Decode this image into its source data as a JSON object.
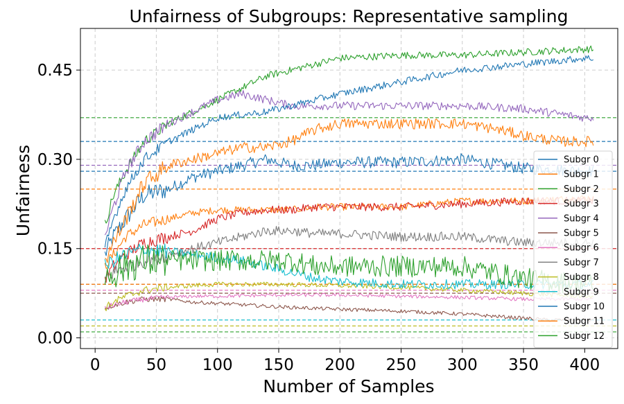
{
  "chart_data": {
    "type": "line",
    "title": "Unfairness of Subgroups: Representative sampling",
    "xlabel": "Number of Samples",
    "ylabel": "Unfairness",
    "xlim": [
      -12,
      427
    ],
    "ylim": [
      -0.018,
      0.52
    ],
    "xticks": [
      0,
      50,
      100,
      150,
      200,
      250,
      300,
      350,
      400
    ],
    "yticks": [
      0.0,
      0.15,
      0.3,
      0.45
    ],
    "ytick_labels": [
      "0.00",
      "0.15",
      "0.30",
      "0.45"
    ],
    "grid": true,
    "legend_position": "lower-right",
    "series": [
      {
        "name": "Subgr 0",
        "color": "#1f77b4",
        "noise": 0.01,
        "x": [
          8,
          15,
          25,
          40,
          60,
          80,
          100,
          120,
          140,
          160,
          180,
          200,
          250,
          300,
          350,
          400,
          407
        ],
        "values": [
          0.14,
          0.17,
          0.2,
          0.24,
          0.25,
          0.27,
          0.28,
          0.29,
          0.3,
          0.29,
          0.29,
          0.295,
          0.295,
          0.3,
          0.285,
          0.28,
          0.28
        ],
        "ref": 0.28
      },
      {
        "name": "Subgr 1",
        "color": "#ff7f0e",
        "noise": 0.006,
        "x": [
          8,
          15,
          25,
          40,
          60,
          80,
          100,
          120,
          140,
          160,
          180,
          200,
          250,
          300,
          350,
          400,
          407
        ],
        "values": [
          0.12,
          0.14,
          0.17,
          0.19,
          0.2,
          0.21,
          0.215,
          0.215,
          0.215,
          0.215,
          0.22,
          0.22,
          0.22,
          0.23,
          0.23,
          0.235,
          0.235
        ],
        "ref": 0.25
      },
      {
        "name": "Subgr 2",
        "color": "#2ca02c",
        "noise": 0.006,
        "x": [
          8,
          15,
          25,
          40,
          60,
          80,
          100,
          120,
          140,
          160,
          180,
          200,
          250,
          300,
          350,
          400,
          407
        ],
        "values": [
          0.19,
          0.24,
          0.28,
          0.33,
          0.36,
          0.38,
          0.4,
          0.42,
          0.44,
          0.45,
          0.46,
          0.47,
          0.475,
          0.475,
          0.48,
          0.485,
          0.485
        ],
        "ref": 0.37
      },
      {
        "name": "Subgr 3",
        "color": "#d62728",
        "noise": 0.007,
        "x": [
          8,
          15,
          25,
          40,
          60,
          80,
          100,
          120,
          140,
          160,
          180,
          200,
          250,
          300,
          350,
          400,
          407
        ],
        "values": [
          0.1,
          0.12,
          0.14,
          0.16,
          0.17,
          0.18,
          0.2,
          0.21,
          0.215,
          0.215,
          0.22,
          0.22,
          0.22,
          0.225,
          0.23,
          0.23,
          0.23
        ],
        "ref": 0.15
      },
      {
        "name": "Subgr 4",
        "color": "#9467bd",
        "noise": 0.007,
        "x": [
          8,
          15,
          25,
          40,
          60,
          80,
          100,
          120,
          140,
          160,
          180,
          200,
          250,
          300,
          350,
          400,
          407
        ],
        "values": [
          0.17,
          0.22,
          0.28,
          0.33,
          0.36,
          0.38,
          0.4,
          0.41,
          0.4,
          0.39,
          0.39,
          0.39,
          0.39,
          0.39,
          0.385,
          0.37,
          0.37
        ],
        "ref": 0.29
      },
      {
        "name": "Subgr 5",
        "color": "#8c564b",
        "noise": 0.003,
        "x": [
          8,
          15,
          25,
          40,
          60,
          80,
          100,
          150,
          200,
          250,
          300,
          350,
          370,
          400,
          407
        ],
        "values": [
          0.05,
          0.055,
          0.06,
          0.065,
          0.065,
          0.06,
          0.058,
          0.052,
          0.048,
          0.045,
          0.04,
          0.033,
          0.03,
          0.03,
          0.03
        ],
        "ref": 0.075
      },
      {
        "name": "Subgr 6",
        "color": "#e377c2",
        "noise": 0.003,
        "x": [
          8,
          15,
          25,
          40,
          60,
          80,
          100,
          150,
          200,
          250,
          300,
          350,
          400,
          407
        ],
        "values": [
          0.05,
          0.055,
          0.06,
          0.065,
          0.068,
          0.07,
          0.07,
          0.072,
          0.072,
          0.07,
          0.068,
          0.065,
          0.065,
          0.065
        ],
        "ref": 0.08
      },
      {
        "name": "Subgr 7",
        "color": "#7f7f7f",
        "noise": 0.008,
        "x": [
          8,
          15,
          25,
          40,
          60,
          80,
          100,
          120,
          140,
          160,
          180,
          200,
          250,
          300,
          350,
          400,
          407
        ],
        "values": [
          0.1,
          0.11,
          0.12,
          0.13,
          0.14,
          0.15,
          0.16,
          0.17,
          0.18,
          0.18,
          0.175,
          0.175,
          0.17,
          0.17,
          0.16,
          0.16,
          0.16
        ],
        "ref": 0.09
      },
      {
        "name": "Subgr 8",
        "color": "#bcbd22",
        "noise": 0.004,
        "x": [
          8,
          15,
          25,
          40,
          60,
          80,
          100,
          150,
          200,
          250,
          300,
          350,
          400,
          407
        ],
        "values": [
          0.05,
          0.06,
          0.07,
          0.08,
          0.085,
          0.088,
          0.09,
          0.09,
          0.088,
          0.085,
          0.08,
          0.075,
          0.07,
          0.07
        ],
        "ref": 0.02
      },
      {
        "name": "Subgr 9",
        "color": "#17becf",
        "noise": 0.008,
        "x": [
          8,
          15,
          25,
          40,
          60,
          80,
          100,
          120,
          140,
          160,
          180,
          200,
          250,
          300,
          350,
          400,
          407
        ],
        "values": [
          0.12,
          0.13,
          0.14,
          0.15,
          0.145,
          0.14,
          0.135,
          0.13,
          0.12,
          0.11,
          0.1,
          0.095,
          0.09,
          0.09,
          0.09,
          0.09,
          0.09
        ],
        "ref": 0.03
      },
      {
        "name": "Subgr 10",
        "color": "#1f77b4",
        "noise": 0.006,
        "x": [
          8,
          15,
          25,
          40,
          60,
          80,
          100,
          120,
          140,
          160,
          180,
          200,
          250,
          300,
          350,
          400,
          407
        ],
        "values": [
          0.15,
          0.2,
          0.25,
          0.3,
          0.33,
          0.35,
          0.37,
          0.375,
          0.38,
          0.39,
          0.4,
          0.41,
          0.43,
          0.45,
          0.46,
          0.47,
          0.47
        ],
        "ref": 0.33
      },
      {
        "name": "Subgr 11",
        "color": "#ff7f0e",
        "noise": 0.009,
        "x": [
          8,
          15,
          25,
          40,
          60,
          80,
          100,
          120,
          140,
          160,
          180,
          200,
          250,
          300,
          330,
          350,
          380,
          400,
          407
        ],
        "values": [
          0.13,
          0.16,
          0.2,
          0.26,
          0.29,
          0.3,
          0.31,
          0.32,
          0.32,
          0.33,
          0.35,
          0.36,
          0.36,
          0.36,
          0.35,
          0.34,
          0.33,
          0.33,
          0.33
        ],
        "ref": 0.09
      },
      {
        "name": "Subgr 12",
        "color": "#2ca02c",
        "noise": 0.018,
        "x": [
          8,
          15,
          25,
          40,
          60,
          80,
          100,
          120,
          140,
          160,
          180,
          200,
          250,
          300,
          350,
          400,
          407
        ],
        "values": [
          0.1,
          0.11,
          0.12,
          0.13,
          0.13,
          0.13,
          0.13,
          0.13,
          0.13,
          0.13,
          0.12,
          0.12,
          0.12,
          0.12,
          0.1,
          0.09,
          0.09
        ],
        "ref": 0.01
      }
    ]
  }
}
